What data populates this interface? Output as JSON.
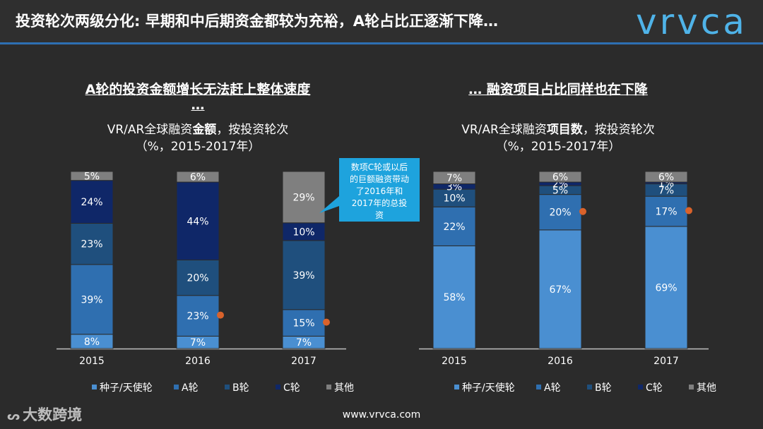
{
  "header": {
    "title": "投资轮次两级分化: 早期和中后期资金都较为充裕，A轮占比正逐渐下降…",
    "logo_text": "vrvca"
  },
  "left_panel": {
    "title_line1": "A轮的投资金额增长无法赶上整体速度",
    "title_line2": "…",
    "subtitle_pre": "VR/AR全球融资",
    "subtitle_bold": "金额",
    "subtitle_post": "，按投资轮次",
    "subtitle_line2": "（%，2015-2017年）"
  },
  "right_panel": {
    "title": "… 融资项目占比同样也在下降",
    "subtitle_pre": "VR/AR全球融资",
    "subtitle_bold": "项目数",
    "subtitle_post": "，按投资轮次",
    "subtitle_line2": "（%，2015-2017年）"
  },
  "callout": {
    "text_lines": [
      "数项C轮或以后",
      "的巨额融资带动",
      "了2016年和",
      "2017年的总投",
      "资"
    ]
  },
  "colors": {
    "seed": "#4a8fd1",
    "a": "#2f6fb0",
    "b": "#1f4f7d",
    "c": "#0f2768",
    "other": "#7f7f7f",
    "marker": "#d9622b",
    "callout": "#1ea3dd"
  },
  "chart_data": [
    {
      "type": "bar",
      "stacked": true,
      "categories": [
        "2015",
        "2016",
        "2017"
      ],
      "series": [
        {
          "name": "种子/天使轮",
          "values": [
            8,
            7,
            7
          ]
        },
        {
          "name": "A轮",
          "values": [
            39,
            23,
            15
          ]
        },
        {
          "name": "B轮",
          "values": [
            23,
            20,
            39
          ]
        },
        {
          "name": "C轮",
          "values": [
            24,
            44,
            10
          ]
        },
        {
          "name": "其他",
          "values": [
            5,
            6,
            29
          ]
        }
      ],
      "labels": [
        [
          "8%",
          "39%",
          "23%",
          "24%",
          "5%"
        ],
        [
          "7%",
          "23%",
          "20%",
          "44%",
          "6%"
        ],
        [
          "7%",
          "15%",
          "39%",
          "10%",
          "29%"
        ]
      ],
      "marked_series": "A轮",
      "marked_categories": [
        "2016",
        "2017"
      ],
      "ylim": [
        0,
        100
      ],
      "legend": "bottom"
    },
    {
      "type": "bar",
      "stacked": true,
      "categories": [
        "2015",
        "2016",
        "2017"
      ],
      "series": [
        {
          "name": "种子/天使轮",
          "values": [
            58,
            67,
            69
          ]
        },
        {
          "name": "A轮",
          "values": [
            22,
            20,
            17
          ]
        },
        {
          "name": "B轮",
          "values": [
            10,
            5,
            7
          ]
        },
        {
          "name": "C轮",
          "values": [
            3,
            2,
            1
          ]
        },
        {
          "name": "其他",
          "values": [
            7,
            6,
            6
          ]
        }
      ],
      "labels": [
        [
          "58%",
          "22%",
          "10%",
          "3%",
          "7%"
        ],
        [
          "67%",
          "20%",
          "5%",
          "2%",
          "6%"
        ],
        [
          "69%",
          "17%",
          "7%",
          "1%",
          "6%"
        ]
      ],
      "marked_series": "A轮",
      "marked_categories": [
        "2016",
        "2017"
      ],
      "ylim": [
        0,
        100
      ],
      "legend": "bottom"
    }
  ],
  "footer": {
    "url": "www.vrvca.com",
    "watermark": "大数跨境"
  }
}
